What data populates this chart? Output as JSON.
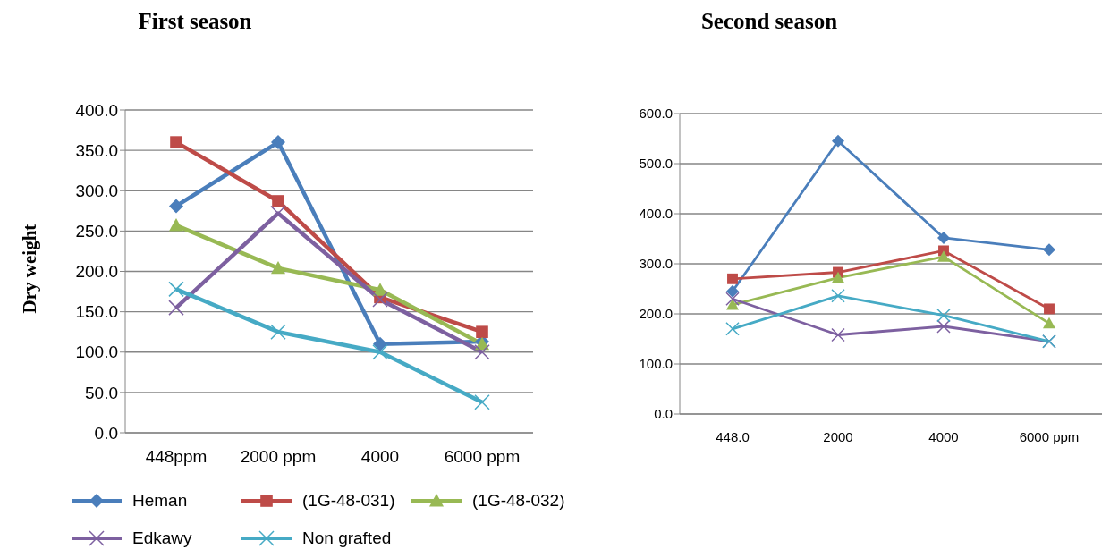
{
  "chart_data": [
    {
      "type": "line",
      "title": "First season",
      "ylabel": "Dry weight",
      "categories": [
        "448ppm",
        "2000 ppm",
        "4000",
        "6000 ppm"
      ],
      "ylim": [
        0,
        400
      ],
      "yticks": [
        {
          "value": 0,
          "label": "0.0"
        },
        {
          "value": 50,
          "label": "50.0"
        },
        {
          "value": 100,
          "label": "100.0"
        },
        {
          "value": 150,
          "label": "150.0"
        },
        {
          "value": 200,
          "label": "200.0"
        },
        {
          "value": 250,
          "label": "250.0"
        },
        {
          "value": 300,
          "label": "300.0"
        },
        {
          "value": 350,
          "label": "350.0"
        },
        {
          "value": 400,
          "label": "400.0"
        }
      ],
      "grid": "y",
      "legend": "bottom",
      "series": [
        {
          "name": "Heman",
          "color": "#4a7ebb",
          "marker": "diamond",
          "values": [
            281,
            360,
            110,
            113
          ]
        },
        {
          "name": "(1G-48-031)",
          "color": "#be4b48",
          "marker": "square",
          "values": [
            360,
            287,
            168,
            125
          ]
        },
        {
          "name": "(1G-48-032)",
          "color": "#98b954",
          "marker": "triangle",
          "values": [
            257,
            204,
            177,
            110
          ]
        },
        {
          "name": "Edkawy",
          "color": "#7d60a0",
          "marker": "cross",
          "values": [
            155,
            272,
            165,
            100
          ]
        },
        {
          "name": "Non grafted",
          "color": "#46aac5",
          "marker": "cross",
          "values": [
            178,
            125,
            100,
            38
          ]
        }
      ]
    },
    {
      "type": "line",
      "title": "Second season",
      "categories": [
        "448.0",
        "2000",
        "4000",
        "6000 ppm"
      ],
      "ylim": [
        0,
        600
      ],
      "yticks": [
        {
          "value": 0,
          "label": "0.0"
        },
        {
          "value": 100,
          "label": "100.0"
        },
        {
          "value": 200,
          "label": "200.0"
        },
        {
          "value": 300,
          "label": "300.0"
        },
        {
          "value": 400,
          "label": "400.0"
        },
        {
          "value": 500,
          "label": "500.0"
        },
        {
          "value": 600,
          "label": "600.0"
        }
      ],
      "grid": "y",
      "legend": false,
      "series": [
        {
          "color": "#4a7ebb",
          "marker": "diamond",
          "values": [
            245,
            545,
            352,
            328
          ]
        },
        {
          "color": "#be4b48",
          "marker": "square",
          "values": [
            270,
            283,
            326,
            210
          ]
        },
        {
          "color": "#98b954",
          "marker": "triangle",
          "values": [
            218,
            272,
            314,
            181
          ]
        },
        {
          "color": "#7d60a0",
          "marker": "cross",
          "values": [
            230,
            158,
            175,
            145
          ]
        },
        {
          "color": "#46aac5",
          "marker": "cross",
          "values": [
            170,
            236,
            197,
            145
          ]
        }
      ]
    }
  ]
}
